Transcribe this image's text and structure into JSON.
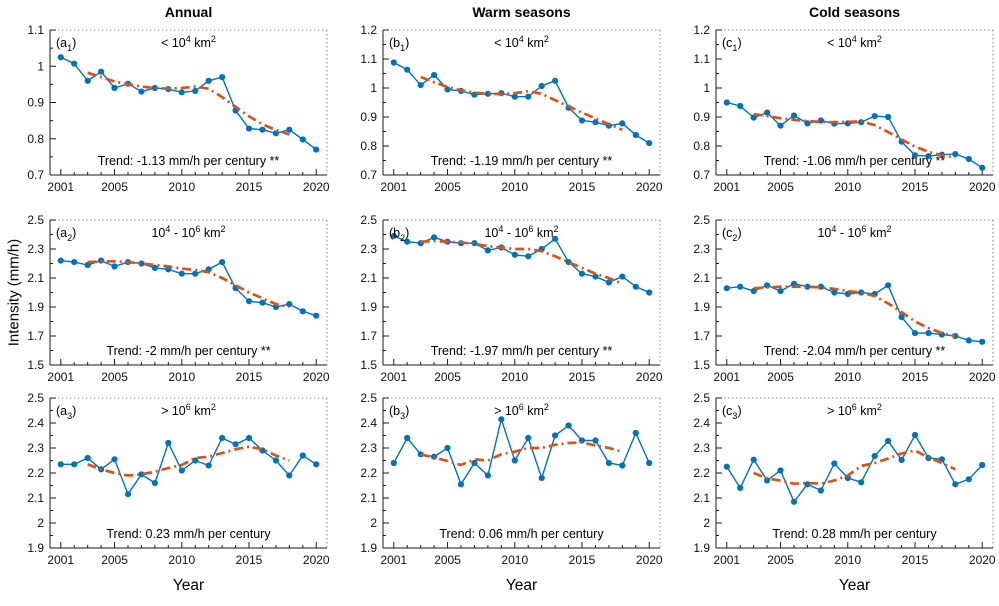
{
  "figure": {
    "ylabel": "Intensity (mm/h)",
    "xlabel": "Year",
    "column_titles": [
      "Annual",
      "Warm seasons",
      "Cold seasons"
    ],
    "colors": {
      "series": "#0072BD",
      "trend": "#D95319",
      "axis": "#1a1a1a",
      "box_light": "#8a8a8a",
      "tick_text": "#111111"
    }
  },
  "chart_data": {
    "type": "line",
    "x_years": [
      2001,
      2002,
      2003,
      2004,
      2005,
      2006,
      2007,
      2008,
      2009,
      2010,
      2011,
      2012,
      2013,
      2014,
      2015,
      2016,
      2017,
      2018,
      2019,
      2020
    ],
    "trend_x_years": [
      2003,
      2004,
      2005,
      2006,
      2007,
      2008,
      2009,
      2010,
      2011,
      2012,
      2013,
      2014,
      2015,
      2016,
      2017,
      2018
    ],
    "xticks": [
      2001,
      2005,
      2010,
      2015,
      2020
    ],
    "xlim": [
      2000.2,
      2020.8
    ],
    "panels": [
      {
        "id": "a1",
        "row": 0,
        "col": 0,
        "title": "Annual",
        "panel_label": "(a_1_)",
        "area_label": "< 10^4^ km^2^",
        "trend_label": "Trend: -1.13 mm/h per century **",
        "ylim": [
          0.7,
          1.1
        ],
        "yticks": [
          0.7,
          0.8,
          0.9,
          1,
          1.1
        ],
        "values": [
          1.025,
          1.007,
          0.96,
          0.985,
          0.94,
          0.952,
          0.93,
          0.94,
          0.937,
          0.928,
          0.932,
          0.96,
          0.97,
          0.878,
          0.828,
          0.825,
          0.815,
          0.825,
          0.798,
          0.77
        ],
        "trend_values": [
          0.982,
          0.97,
          0.958,
          0.95,
          0.944,
          0.94,
          0.938,
          0.94,
          0.944,
          0.938,
          0.915,
          0.888,
          0.862,
          0.84,
          0.824,
          0.812
        ],
        "xlabel": ""
      },
      {
        "id": "b1",
        "row": 0,
        "col": 1,
        "title": "Warm seasons",
        "panel_label": "(b_1_)",
        "area_label": "< 10^4^ km^2^",
        "trend_label": "Trend: -1.19 mm/h per century **",
        "ylim": [
          0.7,
          1.2
        ],
        "yticks": [
          0.7,
          0.8,
          0.9,
          1,
          1.1,
          1.2
        ],
        "values": [
          1.088,
          1.063,
          1.01,
          1.045,
          0.995,
          0.99,
          0.977,
          0.98,
          0.982,
          0.97,
          0.97,
          1.007,
          1.025,
          0.932,
          0.888,
          0.882,
          0.87,
          0.878,
          0.838,
          0.81
        ],
        "trend_values": [
          1.038,
          1.02,
          1.003,
          0.992,
          0.984,
          0.98,
          0.979,
          0.982,
          0.989,
          0.98,
          0.958,
          0.937,
          0.915,
          0.895,
          0.875,
          0.856
        ],
        "xlabel": ""
      },
      {
        "id": "c1",
        "row": 0,
        "col": 2,
        "title": "Cold seasons",
        "panel_label": "(c_1_)",
        "area_label": "< 10^4^ km^2^",
        "trend_label": "Trend: -1.06 mm/h per century **",
        "ylim": [
          0.7,
          1.2
        ],
        "yticks": [
          0.7,
          0.8,
          0.9,
          1,
          1.1,
          1.2
        ],
        "values": [
          0.95,
          0.938,
          0.898,
          0.915,
          0.87,
          0.905,
          0.878,
          0.888,
          0.877,
          0.878,
          0.882,
          0.903,
          0.9,
          0.815,
          0.768,
          0.765,
          0.77,
          0.772,
          0.755,
          0.725
        ],
        "trend_values": [
          0.91,
          0.903,
          0.896,
          0.89,
          0.886,
          0.883,
          0.882,
          0.883,
          0.885,
          0.872,
          0.848,
          0.822,
          0.798,
          0.78,
          0.768,
          0.76
        ],
        "xlabel": ""
      },
      {
        "id": "a2",
        "row": 1,
        "col": 0,
        "title": "",
        "panel_label": "(a_2_)",
        "area_label": "10^4^ - 10^6^ km^2^",
        "trend_label": "Trend: -2 mm/h per century **",
        "ylim": [
          1.5,
          2.5
        ],
        "yticks": [
          1.5,
          1.7,
          1.9,
          2.1,
          2.3,
          2.5
        ],
        "values": [
          2.22,
          2.21,
          2.19,
          2.22,
          2.18,
          2.21,
          2.2,
          2.17,
          2.16,
          2.13,
          2.13,
          2.16,
          2.21,
          2.03,
          1.94,
          1.93,
          1.9,
          1.92,
          1.87,
          1.84
        ],
        "trend_values": [
          2.21,
          2.215,
          2.215,
          2.21,
          2.2,
          2.19,
          2.18,
          2.165,
          2.155,
          2.14,
          2.1,
          2.05,
          2.0,
          1.96,
          1.92,
          1.9
        ],
        "xlabel": ""
      },
      {
        "id": "b2",
        "row": 1,
        "col": 1,
        "title": "",
        "panel_label": "(b_2_)",
        "area_label": "10^4^ - 10^6^ km^2^",
        "trend_label": "Trend: -1.97 mm/h per century **",
        "ylim": [
          1.5,
          2.5
        ],
        "yticks": [
          1.5,
          1.7,
          1.9,
          2.1,
          2.3,
          2.5
        ],
        "values": [
          2.39,
          2.35,
          2.34,
          2.38,
          2.35,
          2.34,
          2.34,
          2.29,
          2.31,
          2.26,
          2.25,
          2.3,
          2.37,
          2.21,
          2.13,
          2.11,
          2.07,
          2.11,
          2.04,
          2.0
        ],
        "trend_values": [
          2.35,
          2.355,
          2.35,
          2.345,
          2.335,
          2.32,
          2.31,
          2.3,
          2.3,
          2.285,
          2.25,
          2.21,
          2.17,
          2.13,
          2.1,
          2.06
        ],
        "xlabel": ""
      },
      {
        "id": "c2",
        "row": 1,
        "col": 2,
        "title": "",
        "panel_label": "(c_2_)",
        "area_label": "10^4^ - 10^6^ km^2^",
        "trend_label": "Trend: -2.04 mm/h per century **",
        "ylim": [
          1.5,
          2.5
        ],
        "yticks": [
          1.5,
          1.7,
          1.9,
          2.1,
          2.3,
          2.5
        ],
        "values": [
          2.03,
          2.04,
          2.01,
          2.05,
          2.01,
          2.06,
          2.04,
          2.04,
          2.0,
          1.99,
          2.0,
          1.99,
          2.05,
          1.83,
          1.72,
          1.72,
          1.71,
          1.7,
          1.67,
          1.66
        ],
        "trend_values": [
          2.03,
          2.035,
          2.04,
          2.04,
          2.04,
          2.035,
          2.025,
          2.01,
          2.0,
          1.975,
          1.925,
          1.865,
          1.8,
          1.755,
          1.72,
          1.7
        ],
        "xlabel": ""
      },
      {
        "id": "a3",
        "row": 2,
        "col": 0,
        "title": "",
        "panel_label": "(a_3_)",
        "area_label": "> 10^6^ km^2^",
        "trend_label": "Trend: 0.23 mm/h per century",
        "ylim": [
          1.9,
          2.5
        ],
        "yticks": [
          1.9,
          2,
          2.1,
          2.2,
          2.3,
          2.4,
          2.5
        ],
        "values": [
          2.235,
          2.235,
          2.26,
          2.215,
          2.255,
          2.115,
          2.195,
          2.16,
          2.32,
          2.21,
          2.25,
          2.23,
          2.34,
          2.315,
          2.34,
          2.29,
          2.25,
          2.19,
          2.27,
          2.235
        ],
        "trend_values": [
          2.235,
          2.215,
          2.2,
          2.19,
          2.195,
          2.205,
          2.22,
          2.232,
          2.26,
          2.265,
          2.28,
          2.295,
          2.305,
          2.295,
          2.27,
          2.25
        ],
        "xlabel": "Year"
      },
      {
        "id": "b3",
        "row": 2,
        "col": 1,
        "title": "",
        "panel_label": "(b_3_)",
        "area_label": "> 10^6^ km^2^",
        "trend_label": "Trend: 0.06 mm/h per century",
        "ylim": [
          1.9,
          2.5
        ],
        "yticks": [
          1.9,
          2,
          2.1,
          2.2,
          2.3,
          2.4,
          2.5
        ],
        "values": [
          2.24,
          2.34,
          2.275,
          2.265,
          2.3,
          2.155,
          2.24,
          2.19,
          2.415,
          2.25,
          2.34,
          2.18,
          2.35,
          2.39,
          2.33,
          2.33,
          2.24,
          2.23,
          2.36,
          2.24
        ],
        "trend_values": [
          2.275,
          2.262,
          2.248,
          2.232,
          2.255,
          2.25,
          2.275,
          2.285,
          2.3,
          2.3,
          2.313,
          2.32,
          2.322,
          2.31,
          2.3,
          2.285
        ],
        "xlabel": "Year"
      },
      {
        "id": "c3",
        "row": 2,
        "col": 2,
        "title": "",
        "panel_label": "(c_3_)",
        "area_label": "> 10^6^ km^2^",
        "trend_label": "Trend: 0.28 mm/h per century",
        "ylim": [
          1.9,
          2.5
        ],
        "yticks": [
          1.9,
          2,
          2.1,
          2.2,
          2.3,
          2.4,
          2.5
        ],
        "values": [
          2.225,
          2.14,
          2.253,
          2.17,
          2.21,
          2.085,
          2.155,
          2.13,
          2.238,
          2.18,
          2.163,
          2.268,
          2.328,
          2.252,
          2.352,
          2.26,
          2.255,
          2.155,
          2.175,
          2.232
        ],
        "trend_values": [
          2.2,
          2.178,
          2.17,
          2.157,
          2.16,
          2.157,
          2.17,
          2.19,
          2.228,
          2.24,
          2.258,
          2.278,
          2.29,
          2.262,
          2.24,
          2.215
        ],
        "xlabel": "Year"
      }
    ]
  }
}
